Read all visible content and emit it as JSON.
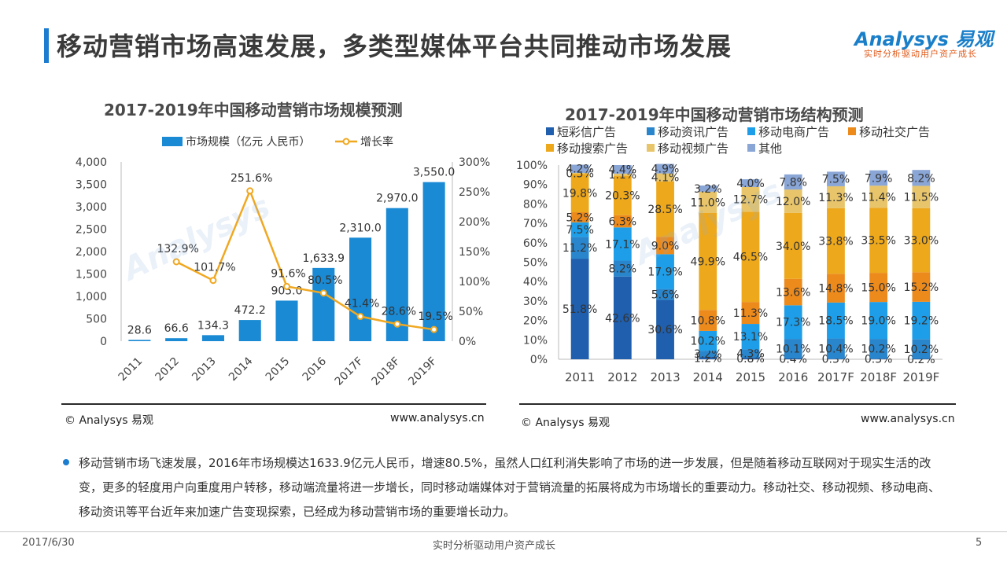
{
  "header": {
    "title": "移动营销市场高速发展，多类型媒体平台共同推动市场发展",
    "logo_brand": "Analysys 易观",
    "logo_slogan": "实时分析驱动用户资产成长"
  },
  "colors": {
    "accent": "#1c7ccf",
    "bar": "#1a8ad4",
    "line": "#f0a821"
  },
  "chart_data": [
    {
      "type": "bar",
      "title": "2017-2019年中国移动营销市场规模预测",
      "categories": [
        "2011",
        "2012",
        "2013",
        "2014",
        "2015",
        "2016",
        "2017F",
        "2018F",
        "2019F"
      ],
      "series": [
        {
          "name": "市场规模（亿元 人民币）",
          "type": "bar",
          "axis": "left",
          "values": [
            28.6,
            66.6,
            134.3,
            472.2,
            905.0,
            1633.9,
            2310.0,
            2970.0,
            3550.0
          ],
          "labels": [
            "28.6",
            "66.6",
            "134.3",
            "472.2",
            "905.0",
            "1,633.9",
            "2,310.0",
            "2,970.0",
            "3,550.0"
          ]
        },
        {
          "name": "增长率",
          "type": "line",
          "axis": "right",
          "values": [
            null,
            132.9,
            101.7,
            251.6,
            91.6,
            80.5,
            41.4,
            28.6,
            19.5
          ],
          "labels": [
            "",
            "132.9%",
            "101.7%",
            "251.6%",
            "91.6%",
            "80.5%",
            "41.4%",
            "28.6%",
            "19.5%"
          ]
        }
      ],
      "ylim": [
        0,
        4000
      ],
      "yticks": [
        "0",
        "500",
        "1,000",
        "1,500",
        "2,000",
        "2,500",
        "3,000",
        "3,500",
        "4,000"
      ],
      "y2lim": [
        0,
        300
      ],
      "y2ticks": [
        "0%",
        "50%",
        "100%",
        "150%",
        "200%",
        "250%",
        "300%"
      ],
      "legend": "top"
    },
    {
      "type": "stacked-bar",
      "title": "2017-2019年中国移动营销市场结构预测",
      "categories": [
        "2011",
        "2012",
        "2013",
        "2014",
        "2015",
        "2016",
        "2017F",
        "2018F",
        "2019F"
      ],
      "series": [
        {
          "name": "短彩信广告",
          "color": "#1f5fad",
          "values": [
            51.8,
            42.6,
            30.6,
            1.2,
            0.8,
            0.4,
            0.3,
            0.3,
            0.2
          ]
        },
        {
          "name": "移动资讯广告",
          "color": "#2a86cc",
          "values": [
            11.2,
            8.2,
            5.6,
            3.2,
            4.3,
            10.1,
            10.4,
            10.2,
            10.2
          ]
        },
        {
          "name": "移动电商广告",
          "color": "#1e9ee8",
          "values": [
            7.5,
            17.1,
            17.9,
            10.2,
            13.1,
            17.3,
            18.5,
            19.0,
            19.2
          ]
        },
        {
          "name": "移动社交广告",
          "color": "#ec8a1c",
          "values": [
            5.2,
            6.3,
            9.0,
            10.8,
            11.3,
            13.6,
            14.8,
            15.0,
            15.2
          ]
        },
        {
          "name": "移动搜索广告",
          "color": "#eda81c",
          "values": [
            19.8,
            20.3,
            28.5,
            49.9,
            46.5,
            34.0,
            33.8,
            33.5,
            33.0
          ]
        },
        {
          "name": "移动视频广告",
          "color": "#e8c56a",
          "values": [
            0.5,
            1.1,
            4.1,
            11.0,
            12.7,
            12.0,
            11.3,
            11.4,
            11.5
          ]
        },
        {
          "name": "其他",
          "color": "#8aa6d6",
          "values": [
            4.2,
            4.4,
            4.9,
            3.2,
            4.0,
            7.8,
            7.5,
            7.9,
            8.2
          ]
        }
      ],
      "labels": [
        [
          "51.8%",
          "42.6%",
          "30.6%",
          "1.2%",
          "0.8%",
          "0.4%",
          "0.3%",
          "0.3%",
          "0.2%"
        ],
        [
          "11.2%",
          "8.2%",
          "5.6%",
          "3.2%",
          "4.3%",
          "10.1%",
          "10.4%",
          "10.2%",
          "10.2%"
        ],
        [
          "7.5%",
          "17.1%",
          "17.9%",
          "10.2%",
          "13.1%",
          "17.3%",
          "18.5%",
          "19.0%",
          "19.2%"
        ],
        [
          "5.2%",
          "6.3%",
          "9.0%",
          "10.8%",
          "11.3%",
          "13.6%",
          "14.8%",
          "15.0%",
          "15.2%"
        ],
        [
          "19.8%",
          "20.3%",
          "28.5%",
          "49.9%",
          "46.5%",
          "34.0%",
          "33.8%",
          "33.5%",
          "33.0%"
        ],
        [
          "0.5%",
          "1.1%",
          "4.1%",
          "11.0%",
          "12.7%",
          "12.0%",
          "11.3%",
          "11.4%",
          "11.5%"
        ],
        [
          "4.2%",
          "4.4%",
          "4.9%",
          "3.2%",
          "4.0%",
          "7.8%",
          "7.5%",
          "7.9%",
          "8.2%"
        ]
      ],
      "ylim": [
        0,
        100
      ],
      "yticks": [
        "0%",
        "10%",
        "20%",
        "30%",
        "40%",
        "50%",
        "60%",
        "70%",
        "80%",
        "90%",
        "100%"
      ],
      "legend": "top"
    }
  ],
  "chart_footer": {
    "copyright": "© Analysys 易观",
    "url": "www.analysys.cn"
  },
  "bullet": {
    "text": "移动营销市场飞速发展，2016年市场规模达1633.9亿元人民币，增速80.5%，虽然人口红利消失影响了市场的进一步发展，但是随着移动互联网对于现实生活的改变，更多的轻度用户向重度用户转移，移动端流量将进一步增长，同时移动端媒体对于营销流量的拓展将成为市场增长的重要动力。移动社交、移动视频、移动电商、移动资讯等平台近年来加速广告变现探索，已经成为移动营销市场的重要增长动力。"
  },
  "footer": {
    "date": "2017/6/30",
    "slogan": "实时分析驱动用户资产成长",
    "page": "5"
  }
}
